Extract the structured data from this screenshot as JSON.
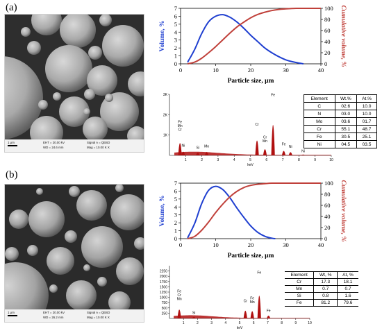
{
  "panels": [
    {
      "label": "(a)",
      "sem": {
        "scale": "1 μm",
        "eht": "EHT = 20.00 kV",
        "wd": "WD = 24.6 mm",
        "signal": "Signal A = QBSD",
        "mag": "Mag = 10.00 K X"
      },
      "eds_table": {
        "headers": [
          "Element",
          "Wt.%",
          "At.%"
        ],
        "rows": [
          [
            "C",
            "02.6",
            "10.0"
          ],
          [
            "N",
            "03.0",
            "10.0"
          ],
          [
            "Mo",
            "03.6",
            "01.7"
          ],
          [
            "Cr",
            "55.1",
            "48.7"
          ],
          [
            "Fe",
            "30.5",
            "25.1"
          ],
          [
            "Ni",
            "04.5",
            "03.5"
          ]
        ]
      }
    },
    {
      "label": "(b)",
      "sem": {
        "scale": "1 μm",
        "eht": "EHT = 20.00 kV",
        "wd": "WD = 26.2 mm",
        "signal": "Signal A = QBSD",
        "mag": "Mag = 10.00 K X"
      },
      "eds_table": {
        "headers": [
          "Element",
          "Wt, %",
          "At, %"
        ],
        "rows": [
          [
            "Cr",
            "17.3",
            "18.1"
          ],
          [
            "Mn",
            "0.7",
            "0.7"
          ],
          [
            "Si",
            "0.8",
            "1.6"
          ],
          [
            "Fe",
            "81.2",
            "79.6"
          ]
        ]
      }
    }
  ],
  "colors": {
    "volume": "#1f3fd0",
    "cumulative": "#c0403a",
    "spectrum": "#b01010"
  },
  "chart_data": [
    {
      "type": "line",
      "panel": "a",
      "xlabel": "Particle size, μm",
      "ylabel": "Volume, %",
      "y2label": "Cumulative volume, %",
      "xlim": [
        0,
        40
      ],
      "ylim": [
        0,
        7
      ],
      "y2lim": [
        0,
        100
      ],
      "xticks": [
        "0",
        "10",
        "20",
        "30",
        "40"
      ],
      "yticks": [
        "0",
        "1",
        "2",
        "3",
        "4",
        "5",
        "6",
        "7"
      ],
      "y2ticks": [
        "0",
        "20",
        "40",
        "60",
        "80",
        "100"
      ],
      "series": [
        {
          "name": "Volume, %",
          "axis": "left",
          "x": [
            2,
            4,
            6,
            8,
            10,
            12,
            14,
            16,
            18,
            20,
            22,
            24,
            26,
            28,
            30,
            32,
            34,
            35
          ],
          "y": [
            0.2,
            1.8,
            3.8,
            5.3,
            6.0,
            6.2,
            5.9,
            5.3,
            4.5,
            3.6,
            2.8,
            2.0,
            1.4,
            0.9,
            0.5,
            0.25,
            0.08,
            0
          ]
        },
        {
          "name": "Cumulative volume, %",
          "axis": "right",
          "x": [
            2,
            4,
            6,
            8,
            10,
            12,
            14,
            16,
            18,
            20,
            22,
            24,
            26,
            28,
            30,
            33,
            36,
            40
          ],
          "y": [
            0,
            3,
            10,
            20,
            31,
            43,
            55,
            66,
            75,
            83,
            89,
            93,
            96,
            98,
            99,
            100,
            100,
            100
          ]
        }
      ]
    },
    {
      "type": "line",
      "panel": "b",
      "xlabel": "Particle size, μm",
      "ylabel": "Volume, %",
      "y2label": "Cumulative volume, %",
      "xlim": [
        0,
        40
      ],
      "ylim": [
        0,
        7
      ],
      "y2lim": [
        0,
        100
      ],
      "xticks": [
        "0",
        "10",
        "20",
        "30",
        "40"
      ],
      "yticks": [
        "0",
        "1",
        "2",
        "3",
        "4",
        "5",
        "6",
        "7"
      ],
      "y2ticks": [
        "0",
        "20",
        "40",
        "60",
        "80",
        "100"
      ],
      "series": [
        {
          "name": "Volume, %",
          "axis": "left",
          "x": [
            2,
            4,
            6,
            8,
            10,
            12,
            14,
            16,
            18,
            20,
            22,
            24,
            26,
            27
          ],
          "y": [
            0.1,
            1.9,
            4.4,
            6.1,
            6.6,
            6.2,
            5.2,
            3.9,
            2.7,
            1.6,
            0.8,
            0.3,
            0.05,
            0
          ]
        },
        {
          "name": "Cumulative volume, %",
          "axis": "right",
          "x": [
            2,
            4,
            6,
            8,
            10,
            12,
            14,
            16,
            18,
            20,
            22,
            24,
            26,
            30,
            35,
            40
          ],
          "y": [
            0,
            4,
            15,
            30,
            47,
            62,
            75,
            85,
            92,
            96,
            98,
            99,
            100,
            100,
            100,
            100
          ]
        }
      ]
    },
    {
      "type": "bar",
      "panel": "a",
      "xlabel": "keV",
      "xlim": [
        0,
        10
      ],
      "ylim": [
        0,
        3000
      ],
      "xticks": [
        "1",
        "2",
        "3",
        "4",
        "5",
        "6",
        "7",
        "8",
        "9",
        "10"
      ],
      "yticks": [
        "1K",
        "2K",
        "3K"
      ],
      "peaks": [
        {
          "label": "Fe Mn Cr",
          "x": 0.65,
          "y": 1150
        },
        {
          "label": "Ni",
          "x": 0.85,
          "y": 350
        },
        {
          "label": "Si",
          "x": 1.75,
          "y": 250
        },
        {
          "label": "Mo",
          "x": 2.3,
          "y": 320
        },
        {
          "label": "Cr",
          "x": 5.41,
          "y": 1400
        },
        {
          "label": "Cr Mn",
          "x": 5.9,
          "y": 580
        },
        {
          "label": "Fe",
          "x": 6.4,
          "y": 2850
        },
        {
          "label": "Fe",
          "x": 7.06,
          "y": 420
        },
        {
          "label": "Ni",
          "x": 7.48,
          "y": 300
        },
        {
          "label": "Ni",
          "x": 8.26,
          "y": 80
        }
      ]
    },
    {
      "type": "bar",
      "panel": "b",
      "xlabel": "keV",
      "xlim": [
        0,
        10
      ],
      "ylim": [
        0,
        2500
      ],
      "xticks": [
        "1",
        "2",
        "3",
        "4",
        "5",
        "6",
        "7",
        "8",
        "9",
        "10"
      ],
      "yticks": [
        "250",
        "500",
        "750",
        "1000",
        "1250",
        "1500",
        "1750",
        "2000",
        "2250"
      ],
      "peaks": [
        {
          "label": "Fe Cr Mn",
          "x": 0.7,
          "y": 800
        },
        {
          "label": "Si",
          "x": 1.74,
          "y": 140
        },
        {
          "label": "Cr",
          "x": 5.41,
          "y": 700
        },
        {
          "label": "Fe Mn",
          "x": 5.9,
          "y": 650
        },
        {
          "label": "Fe",
          "x": 6.4,
          "y": 2050
        },
        {
          "label": "Fe",
          "x": 7.06,
          "y": 250
        }
      ]
    }
  ]
}
